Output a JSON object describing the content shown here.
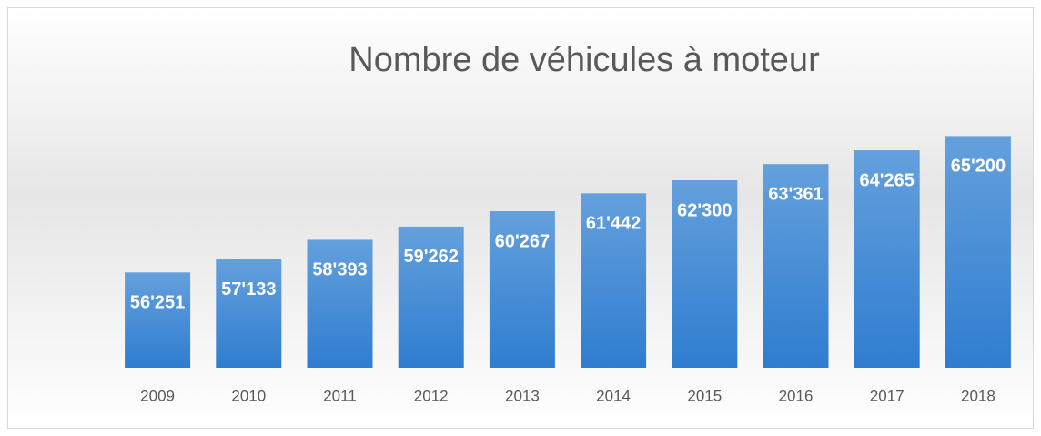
{
  "chart_data": {
    "type": "bar",
    "title": "Nombre de véhicules à moteur",
    "categories": [
      "2009",
      "2010",
      "2011",
      "2012",
      "2013",
      "2014",
      "2015",
      "2016",
      "2017",
      "2018"
    ],
    "values": [
      56251,
      57133,
      58393,
      59262,
      60267,
      61442,
      62300,
      63361,
      64265,
      65200
    ],
    "value_labels": [
      "56'251",
      "57'133",
      "58'393",
      "59'262",
      "60'267",
      "61'442",
      "62'300",
      "63'361",
      "64'265",
      "65'200"
    ],
    "color": "#4a8fd8",
    "ylim": [
      50000,
      70000
    ]
  }
}
